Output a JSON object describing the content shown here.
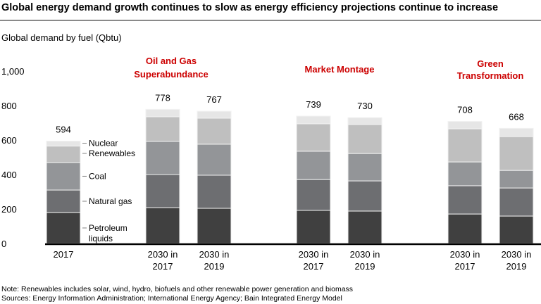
{
  "title": "Global energy demand growth continues to slow as energy efficiency projections continue to increase",
  "notes": [
    "Note: Renewables includes solar, wind, hydro, biofuels and other renewable power generation and biomass",
    "Sources: Energy Information Administration; International Energy Agency; Bain Integrated Energy Model"
  ],
  "chart_data": {
    "type": "bar",
    "stacked": true,
    "title": "Global energy demand growth continues to slow as energy efficiency projections continue to increase",
    "ylabel": "Global demand by fuel (Qbtu)",
    "xlabel": "",
    "ylim": [
      0,
      1000
    ],
    "yticks": [
      "0",
      "200",
      "400",
      "600",
      "800",
      "1,000"
    ],
    "grid": false,
    "legend": "inline-right-of-first-bar",
    "groups": [
      {
        "label": "",
        "bars": [
          0
        ]
      },
      {
        "label": "Oil and Gas Superabundance",
        "bars": [
          1,
          2
        ]
      },
      {
        "label": "Market Montage",
        "bars": [
          3,
          4
        ]
      },
      {
        "label": "Green Transformation",
        "bars": [
          5,
          6
        ]
      }
    ],
    "group_label_color": "#cc0000",
    "categories": [
      "2017",
      "2030 in 2017",
      "2030 in 2019",
      "2030 in 2017",
      "2030 in 2019",
      "2030 in 2017",
      "2030 in 2019"
    ],
    "totals": [
      "594",
      "778",
      "767",
      "739",
      "730",
      "708",
      "668"
    ],
    "series": [
      {
        "name": "Petroleum liquids",
        "color": "#404040",
        "values": [
          180,
          208,
          204,
          192,
          188,
          171,
          159
        ]
      },
      {
        "name": "Natural gas",
        "color": "#6d6e71",
        "values": [
          130,
          192,
          192,
          179,
          175,
          164,
          163
        ]
      },
      {
        "name": "Coal",
        "color": "#939598",
        "values": [
          160,
          192,
          180,
          164,
          159,
          138,
          102
        ]
      },
      {
        "name": "Renewables",
        "color": "#bfbfbf",
        "values": [
          95,
          143,
          151,
          159,
          168,
          192,
          196
        ]
      },
      {
        "name": "Nuclear",
        "color": "#e6e6e6",
        "values": [
          29,
          43,
          40,
          45,
          40,
          43,
          48
        ]
      }
    ]
  }
}
